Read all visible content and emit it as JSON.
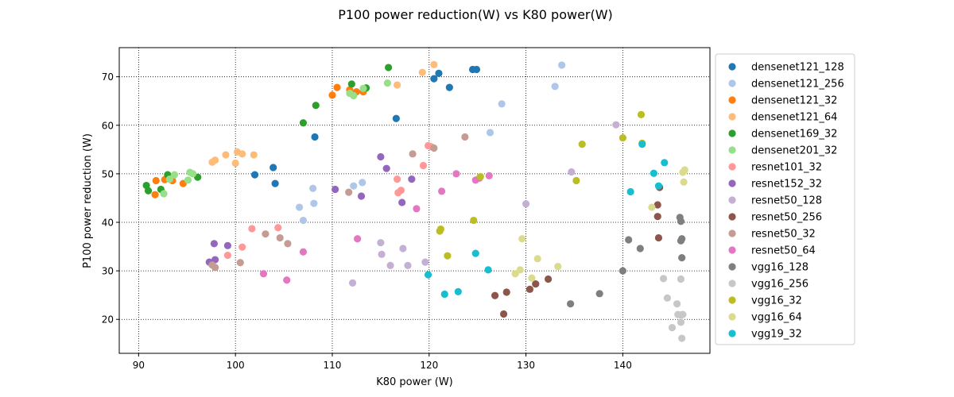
{
  "chart_data": {
    "type": "scatter",
    "title": "P100 power reduction(W) vs K80 power(W)",
    "xlabel": "K80 power (W)",
    "ylabel": "P100 power reduction (W)",
    "xlim": [
      88,
      149
    ],
    "ylim": [
      13,
      76
    ],
    "xticks": [
      90,
      100,
      110,
      120,
      130,
      140
    ],
    "yticks": [
      20,
      30,
      40,
      50,
      60,
      70
    ],
    "grid": true,
    "grid_style": "dotted",
    "legend_position": "outside-right",
    "series": [
      {
        "name": "densenet121_128",
        "color": "#1f77b4",
        "points": [
          [
            102.0,
            49.8
          ],
          [
            103.9,
            51.3
          ],
          [
            104.1,
            48.0
          ],
          [
            108.2,
            57.6
          ],
          [
            116.6,
            61.4
          ],
          [
            120.5,
            69.6
          ],
          [
            121.0,
            70.7
          ],
          [
            122.1,
            67.8
          ],
          [
            124.5,
            71.5
          ],
          [
            124.9,
            71.5
          ]
        ]
      },
      {
        "name": "densenet121_256",
        "color": "#aec7e8",
        "points": [
          [
            106.6,
            43.1
          ],
          [
            107.0,
            40.4
          ],
          [
            108.0,
            47.0
          ],
          [
            108.1,
            43.9
          ],
          [
            112.2,
            47.5
          ],
          [
            113.1,
            48.2
          ],
          [
            126.3,
            58.5
          ],
          [
            127.5,
            64.4
          ],
          [
            133.0,
            68.0
          ],
          [
            133.7,
            72.4
          ]
        ]
      },
      {
        "name": "densenet121_32",
        "color": "#ff7f0e",
        "points": [
          [
            91.7,
            45.7
          ],
          [
            91.8,
            48.6
          ],
          [
            92.7,
            48.8
          ],
          [
            93.5,
            48.6
          ],
          [
            94.6,
            48.0
          ],
          [
            110.0,
            66.2
          ],
          [
            110.5,
            67.8
          ],
          [
            111.8,
            67.3
          ],
          [
            112.5,
            66.9
          ],
          [
            113.2,
            66.9
          ]
        ]
      },
      {
        "name": "densenet121_64",
        "color": "#ffbb78",
        "points": [
          [
            97.6,
            52.4
          ],
          [
            97.9,
            52.8
          ],
          [
            99.0,
            53.9
          ],
          [
            100.0,
            52.2
          ],
          [
            100.2,
            54.5
          ],
          [
            100.7,
            54.1
          ],
          [
            101.9,
            53.9
          ],
          [
            116.7,
            68.3
          ],
          [
            119.3,
            70.9
          ],
          [
            120.5,
            72.5
          ]
        ]
      },
      {
        "name": "densenet169_32",
        "color": "#2ca02c",
        "points": [
          [
            90.8,
            47.6
          ],
          [
            91.0,
            46.5
          ],
          [
            92.3,
            46.8
          ],
          [
            93.0,
            49.8
          ],
          [
            96.1,
            49.3
          ],
          [
            107.0,
            60.5
          ],
          [
            108.3,
            64.1
          ],
          [
            112.0,
            68.5
          ],
          [
            113.5,
            67.7
          ],
          [
            115.8,
            71.9
          ]
        ]
      },
      {
        "name": "densenet201_32",
        "color": "#98df8a",
        "points": [
          [
            92.6,
            45.9
          ],
          [
            93.2,
            48.9
          ],
          [
            93.7,
            49.8
          ],
          [
            95.1,
            48.7
          ],
          [
            95.3,
            50.3
          ],
          [
            95.6,
            50.0
          ],
          [
            112.2,
            66.1
          ],
          [
            111.8,
            66.6
          ],
          [
            113.2,
            67.6
          ],
          [
            115.7,
            68.7
          ]
        ]
      },
      {
        "name": "resnet101_32",
        "color": "#ff9896",
        "points": [
          [
            99.2,
            33.2
          ],
          [
            100.7,
            34.9
          ],
          [
            101.7,
            38.7
          ],
          [
            104.4,
            38.9
          ],
          [
            116.7,
            48.9
          ],
          [
            116.8,
            46.1
          ],
          [
            117.1,
            46.6
          ],
          [
            119.4,
            51.7
          ],
          [
            119.9,
            55.8
          ],
          [
            120.2,
            55.6
          ]
        ]
      },
      {
        "name": "resnet152_32",
        "color": "#9467bd",
        "points": [
          [
            97.3,
            31.8
          ],
          [
            97.8,
            35.6
          ],
          [
            97.9,
            32.3
          ],
          [
            99.2,
            35.2
          ],
          [
            110.3,
            46.8
          ],
          [
            113.0,
            45.4
          ],
          [
            115.0,
            53.5
          ],
          [
            115.6,
            51.1
          ],
          [
            117.2,
            44.1
          ],
          [
            118.2,
            48.9
          ]
        ]
      },
      {
        "name": "resnet50_128",
        "color": "#c5b0d5",
        "points": [
          [
            112.1,
            27.5
          ],
          [
            115.0,
            35.8
          ],
          [
            115.1,
            33.4
          ],
          [
            116.0,
            31.1
          ],
          [
            117.3,
            34.6
          ],
          [
            117.8,
            31.1
          ],
          [
            119.6,
            31.8
          ],
          [
            130.0,
            43.8
          ],
          [
            134.7,
            50.4
          ],
          [
            139.3,
            60.1
          ]
        ]
      },
      {
        "name": "resnet50_256",
        "color": "#8c564b",
        "points": [
          [
            126.8,
            24.9
          ],
          [
            127.7,
            21.1
          ],
          [
            128.0,
            25.6
          ],
          [
            130.4,
            26.2
          ],
          [
            131.0,
            27.3
          ],
          [
            132.3,
            28.3
          ],
          [
            143.6,
            43.6
          ],
          [
            143.6,
            41.2
          ],
          [
            143.7,
            36.8
          ],
          [
            143.8,
            47.2
          ]
        ]
      },
      {
        "name": "resnet50_32",
        "color": "#c49c94",
        "points": [
          [
            97.6,
            31.2
          ],
          [
            97.9,
            30.7
          ],
          [
            100.5,
            31.7
          ],
          [
            103.1,
            37.6
          ],
          [
            104.6,
            36.8
          ],
          [
            105.4,
            35.6
          ],
          [
            111.7,
            46.2
          ],
          [
            118.3,
            54.1
          ],
          [
            120.5,
            55.3
          ],
          [
            123.7,
            57.6
          ]
        ]
      },
      {
        "name": "resnet50_64",
        "color": "#e377c2",
        "points": [
          [
            102.9,
            29.4
          ],
          [
            105.3,
            28.1
          ],
          [
            107.0,
            33.9
          ],
          [
            112.6,
            36.6
          ],
          [
            118.7,
            42.8
          ],
          [
            121.3,
            46.4
          ],
          [
            122.8,
            50.0
          ],
          [
            124.8,
            48.7
          ],
          [
            125.2,
            49.1
          ],
          [
            126.2,
            49.6
          ]
        ]
      },
      {
        "name": "vgg16_128",
        "color": "#7f7f7f",
        "points": [
          [
            134.6,
            23.2
          ],
          [
            137.6,
            25.3
          ],
          [
            140.0,
            30.0
          ],
          [
            140.6,
            36.4
          ],
          [
            141.8,
            34.6
          ],
          [
            145.9,
            41.0
          ],
          [
            146.0,
            40.2
          ],
          [
            146.0,
            36.2
          ],
          [
            146.1,
            36.6
          ],
          [
            146.1,
            32.7
          ]
        ]
      },
      {
        "name": "vgg16_256",
        "color": "#c7c7c7",
        "points": [
          [
            144.2,
            28.4
          ],
          [
            144.6,
            24.4
          ],
          [
            145.1,
            18.3
          ],
          [
            145.6,
            23.2
          ],
          [
            146.0,
            28.3
          ],
          [
            146.0,
            19.4
          ],
          [
            146.0,
            20.9
          ],
          [
            146.1,
            16.1
          ],
          [
            145.7,
            21.0
          ],
          [
            146.2,
            21.0
          ]
        ]
      },
      {
        "name": "vgg16_32",
        "color": "#bcbd22",
        "points": [
          [
            121.1,
            38.2
          ],
          [
            121.2,
            38.6
          ],
          [
            121.9,
            33.1
          ],
          [
            124.6,
            40.4
          ],
          [
            125.3,
            49.4
          ],
          [
            135.2,
            48.6
          ],
          [
            135.8,
            56.1
          ],
          [
            140.0,
            57.4
          ],
          [
            141.9,
            62.2
          ],
          [
            142.0,
            56.3
          ]
        ]
      },
      {
        "name": "vgg16_64",
        "color": "#dbdb8d",
        "points": [
          [
            128.9,
            29.4
          ],
          [
            129.4,
            30.2
          ],
          [
            129.6,
            36.6
          ],
          [
            130.6,
            28.5
          ],
          [
            131.2,
            32.5
          ],
          [
            133.3,
            30.9
          ],
          [
            143.0,
            43.1
          ],
          [
            146.2,
            50.3
          ],
          [
            146.4,
            50.8
          ],
          [
            146.3,
            48.3
          ]
        ]
      },
      {
        "name": "vgg19_32",
        "color": "#17becf",
        "points": [
          [
            119.9,
            29.2
          ],
          [
            121.6,
            25.2
          ],
          [
            123.0,
            25.7
          ],
          [
            124.8,
            33.6
          ],
          [
            126.1,
            30.2
          ],
          [
            140.8,
            46.3
          ],
          [
            142.0,
            56.1
          ],
          [
            143.2,
            50.1
          ],
          [
            143.7,
            47.5
          ],
          [
            144.3,
            52.3
          ]
        ]
      }
    ]
  }
}
